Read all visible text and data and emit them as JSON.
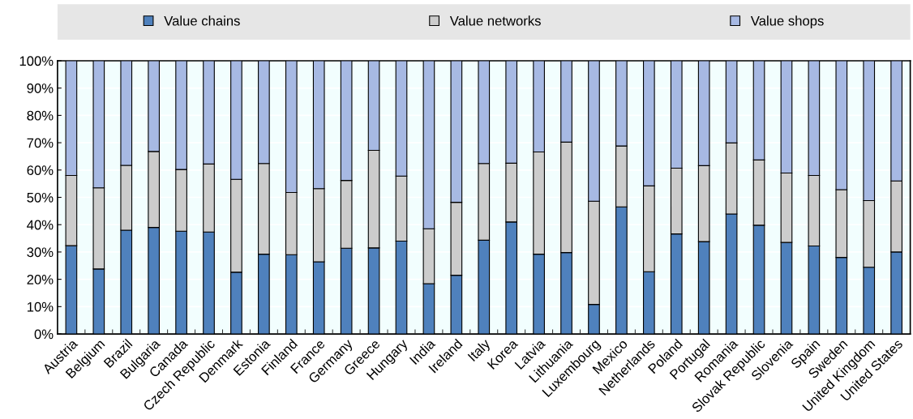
{
  "chart_data": {
    "type": "bar",
    "stacked": true,
    "categories": [
      "Austria",
      "Belgium",
      "Brazil",
      "Bulgaria",
      "Canada",
      "Czech Republic",
      "Denmark",
      "Estonia",
      "Finland",
      "France",
      "Germany",
      "Greece",
      "Hungary",
      "India",
      "Ireland",
      "Italy",
      "Korea",
      "Latvia",
      "Lithuania",
      "Luxembourg",
      "Mexico",
      "Netherlands",
      "Poland",
      "Portugal",
      "Romania",
      "Slovak Republic",
      "Slovenia",
      "Spain",
      "Sweden",
      "United Kingdom",
      "United States"
    ],
    "series": [
      {
        "name": "Value chains",
        "color": "#4f81bd",
        "values": [
          32.3,
          23.8,
          38,
          39,
          37.6,
          37.3,
          22.6,
          29.2,
          29,
          26.4,
          31.4,
          31.5,
          34,
          18.4,
          21.5,
          34.3,
          41,
          29.2,
          29.8,
          10.8,
          46.5,
          22.8,
          36.6,
          33.8,
          43.9,
          39.8,
          33.5,
          32.2,
          28,
          24.4,
          30
        ]
      },
      {
        "name": "Value networks",
        "color": "#cccccc",
        "values": [
          25.7,
          29.7,
          23.7,
          27.8,
          22.6,
          24.9,
          34,
          33.2,
          22.8,
          26.8,
          24.8,
          35.7,
          23.8,
          20.1,
          26.7,
          28.1,
          21.5,
          37.4,
          40.4,
          37.8,
          22.3,
          31.4,
          24.1,
          27.8,
          26,
          23.9,
          25.4,
          25.8,
          24.8,
          24.4,
          26
        ]
      },
      {
        "name": "Value shops",
        "color": "#a7b9e3",
        "values": [
          42,
          46.5,
          38.3,
          33.2,
          39.8,
          37.8,
          43.4,
          37.6,
          48.2,
          46.8,
          43.8,
          32.8,
          42.2,
          61.5,
          51.8,
          37.6,
          37.5,
          33.4,
          29.8,
          51.4,
          31.2,
          45.8,
          39.3,
          38.4,
          30.1,
          36.3,
          41.1,
          42,
          47.2,
          51.2,
          44
        ]
      }
    ],
    "ylim": [
      0,
      100
    ],
    "yticks": [
      {
        "value": 0,
        "label": "0%"
      },
      {
        "value": 10,
        "label": "10%"
      },
      {
        "value": 20,
        "label": "20%"
      },
      {
        "value": 30,
        "label": "30%"
      },
      {
        "value": 40,
        "label": "40%"
      },
      {
        "value": 50,
        "label": "50%"
      },
      {
        "value": 60,
        "label": "60%"
      },
      {
        "value": 70,
        "label": "70%"
      },
      {
        "value": 80,
        "label": "80%"
      },
      {
        "value": 90,
        "label": "90%"
      },
      {
        "value": 100,
        "label": "100%"
      }
    ],
    "grid": "y",
    "legend": "top"
  }
}
